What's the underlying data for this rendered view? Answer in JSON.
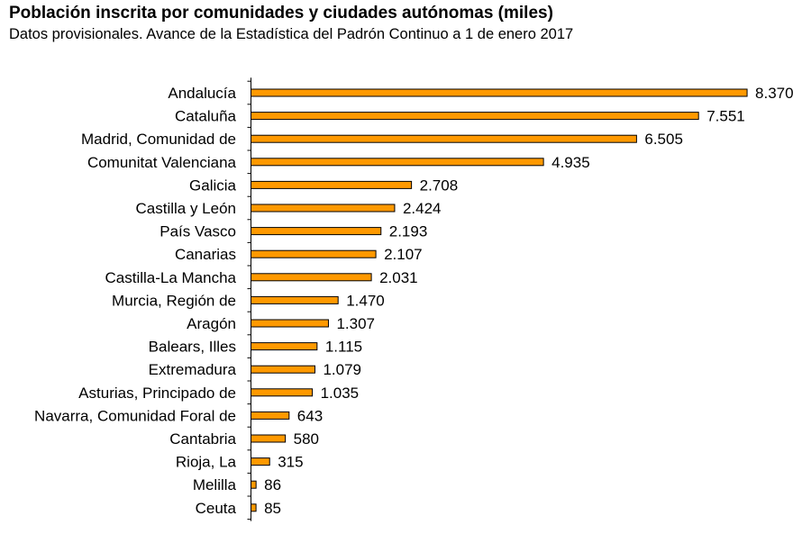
{
  "chart_data": {
    "type": "bar",
    "orientation": "horizontal",
    "title": "Población inscrita por comunidades y ciudades autónomas (miles)",
    "subtitle": "Datos provisionales. Avance de la Estadística del Padrón Continuo a 1 de enero 2017",
    "xlabel": "",
    "ylabel": "",
    "xlim": [
      0,
      9000
    ],
    "grid": false,
    "bar_color": "#FF9900",
    "categories": [
      "Andalucía",
      "Cataluña",
      "Madrid, Comunidad de",
      "Comunitat Valenciana",
      "Galicia",
      "Castilla y León",
      "País Vasco",
      "Canarias",
      "Castilla-La Mancha",
      "Murcia, Región de",
      "Aragón",
      "Balears, Illes",
      "Extremadura",
      "Asturias, Principado de",
      "Navarra, Comunidad Foral de",
      "Cantabria",
      "Rioja, La",
      "Melilla",
      "Ceuta"
    ],
    "values": [
      8370,
      7551,
      6505,
      4935,
      2708,
      2424,
      2193,
      2107,
      2031,
      1470,
      1307,
      1115,
      1079,
      1035,
      643,
      580,
      315,
      86,
      85
    ],
    "value_labels": [
      "8.370",
      "7.551",
      "6.505",
      "4.935",
      "2.708",
      "2.424",
      "2.193",
      "2.107",
      "2.031",
      "1.470",
      "1.307",
      "1.115",
      "1.079",
      "1.035",
      "643",
      "580",
      "315",
      "86",
      "85"
    ]
  }
}
